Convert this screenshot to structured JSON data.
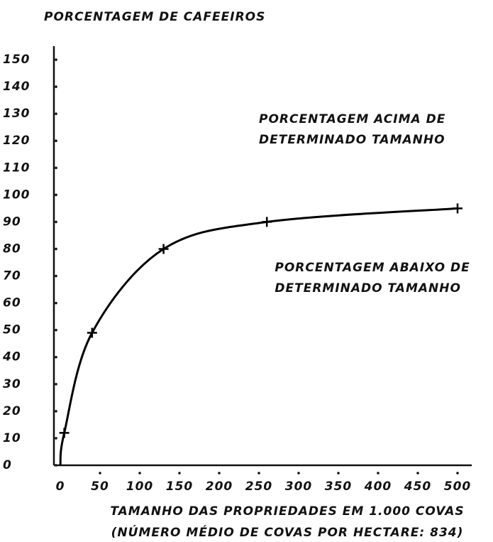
{
  "chart_data": {
    "type": "line",
    "title": "PORCENTAGEM DE CAFEEIROS",
    "x_label": [
      "TAMANHO DAS PROPRIEDADES EM 1.000 COVAS",
      "(NÚMERO MÉDIO DE COVAS POR HECTARE: 834)"
    ],
    "annotations": [
      {
        "lines": [
          "PORCENTAGEM ACIMA DE",
          "DETERMINADO TAMANHO"
        ],
        "x": 250,
        "y": 128
      },
      {
        "lines": [
          "PORCENTAGEM ABAIXO DE",
          "DETERMINADO TAMANHO"
        ],
        "x": 270,
        "y": 73
      }
    ],
    "x": [
      0,
      5,
      40,
      130,
      260,
      500
    ],
    "series": [
      {
        "name": null,
        "color": "#000000",
        "values": [
          0,
          12,
          49,
          80,
          90,
          95
        ]
      }
    ],
    "xlim": [
      0,
      500
    ],
    "xticks": [
      0,
      50,
      100,
      150,
      200,
      250,
      300,
      350,
      400,
      450,
      500
    ],
    "ylim": [
      0,
      155
    ],
    "yticks": [
      0,
      10,
      20,
      30,
      40,
      50,
      60,
      70,
      80,
      90,
      100,
      110,
      120,
      130,
      140,
      150
    ]
  }
}
